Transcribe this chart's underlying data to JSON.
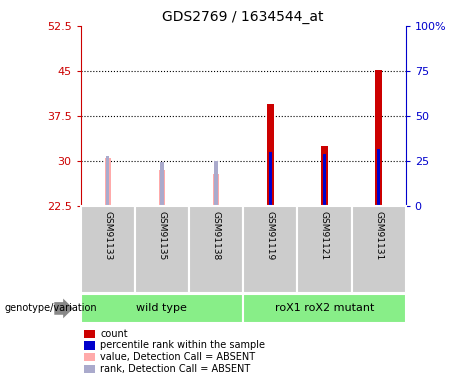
{
  "title": "GDS2769 / 1634544_at",
  "samples": [
    "GSM91133",
    "GSM91135",
    "GSM91138",
    "GSM91119",
    "GSM91121",
    "GSM91131"
  ],
  "absent": [
    true,
    true,
    true,
    false,
    false,
    false
  ],
  "count_values": [
    30.5,
    28.5,
    27.8,
    39.5,
    32.5,
    45.2
  ],
  "rank_values": [
    30.8,
    29.8,
    30.0,
    31.5,
    31.2,
    32.0
  ],
  "ylim_left": [
    22.5,
    52.5
  ],
  "ylim_right": [
    0,
    100
  ],
  "yticks_left": [
    22.5,
    30.0,
    37.5,
    45.0,
    52.5
  ],
  "yticks_right": [
    0,
    25,
    50,
    75,
    100
  ],
  "ytick_labels_left": [
    "22.5",
    "30",
    "37.5",
    "45",
    "52.5"
  ],
  "ytick_labels_right": [
    "0",
    "25",
    "50",
    "75",
    "100%"
  ],
  "count_bar_width": 0.12,
  "rank_bar_width": 0.06,
  "color_count_present": "#cc0000",
  "color_count_absent": "#ffaaaa",
  "color_rank_present": "#0000cc",
  "color_rank_absent": "#aaaacc",
  "baseline": 22.5,
  "legend_items": [
    {
      "color": "#cc0000",
      "label": "count"
    },
    {
      "color": "#0000cc",
      "label": "percentile rank within the sample"
    },
    {
      "color": "#ffaaaa",
      "label": "value, Detection Call = ABSENT"
    },
    {
      "color": "#aaaacc",
      "label": "rank, Detection Call = ABSENT"
    }
  ],
  "genotype_label": "genotype/variation",
  "group_color": "#88ee88",
  "left_axis_color": "#cc0000",
  "right_axis_color": "#0000cc",
  "groups": [
    {
      "label": "wild type",
      "start": 0,
      "end": 2
    },
    {
      "label": "roX1 roX2 mutant",
      "start": 3,
      "end": 5
    }
  ],
  "sample_box_color": "#cccccc",
  "background_color": "#ffffff"
}
